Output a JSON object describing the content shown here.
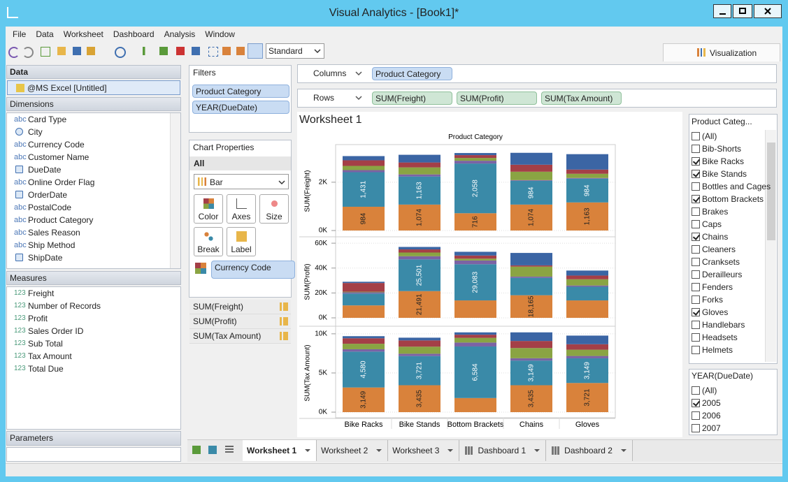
{
  "window": {
    "title": "Visual Analytics - [Book1]*"
  },
  "menu": [
    "File",
    "Data",
    "Worksheet",
    "Dashboard",
    "Analysis",
    "Window"
  ],
  "toolbar": {
    "view": "Standard"
  },
  "visualization_tab": "Visualization",
  "data_panel": {
    "title": "Data",
    "source": "@MS Excel [Untitled]",
    "dimensions_title": "Dimensions",
    "dimensions": [
      {
        "type": "abc",
        "name": "Card Type"
      },
      {
        "name": "City"
      },
      {
        "type": "abc",
        "name": "Currency Code"
      },
      {
        "type": "abc",
        "name": "Customer Name"
      },
      {
        "name": "DueDate"
      },
      {
        "type": "abc",
        "name": "Online Order Flag"
      },
      {
        "name": "OrderDate"
      },
      {
        "type": "abc",
        "name": "PostalCode"
      },
      {
        "type": "abc",
        "name": "Product Category"
      },
      {
        "type": "abc",
        "name": "Sales Reason"
      },
      {
        "type": "abc",
        "name": "Ship Method"
      },
      {
        "name": "ShipDate"
      }
    ],
    "measures_title": "Measures",
    "measures": [
      {
        "type": "123",
        "name": "Freight"
      },
      {
        "type": "123",
        "name": "Number of Records"
      },
      {
        "type": "123",
        "name": "Profit"
      },
      {
        "type": "123",
        "name": "Sales Order ID"
      },
      {
        "type": "123",
        "name": "Sub Total"
      },
      {
        "type": "123",
        "name": "Tax Amount"
      },
      {
        "type": "123",
        "name": "Total Due"
      }
    ],
    "parameters_title": "Parameters"
  },
  "filters": {
    "title": "Filters",
    "items": [
      "Product Category",
      "YEAR(DueDate)"
    ]
  },
  "chart_properties": {
    "title": "Chart Properties",
    "section": "All",
    "mark_type": "Bar",
    "buttons": [
      "Color",
      "Axes",
      "Size",
      "Break",
      "Label"
    ],
    "color_field": "Currency Code",
    "measures": [
      "SUM(Freight)",
      "SUM(Profit)",
      "SUM(Tax Amount)"
    ]
  },
  "shelves": {
    "columns": {
      "label": "Columns",
      "pills": [
        "Product Category"
      ]
    },
    "rows": {
      "label": "Rows",
      "pills": [
        "SUM(Freight)",
        "SUM(Profit)",
        "SUM(Tax Amount)"
      ]
    }
  },
  "worksheet_title": "Worksheet 1",
  "chart_data": {
    "type": "bar",
    "stacked": true,
    "title": "Product Category",
    "categories": [
      "Bike Racks",
      "Bike Stands",
      "Bottom Brackets",
      "Chains",
      "Gloves"
    ],
    "panels": [
      {
        "ylabel": "SUM(Freight)",
        "ylim": [
          0,
          3500
        ],
        "yticks": [
          {
            "value": 0,
            "label": "0K"
          },
          {
            "value": 2000,
            "label": "2K"
          }
        ],
        "series": [
          {
            "color": "#d9823b",
            "values": [
              984,
              1074,
              716,
              1074,
              1163
            ],
            "value_labels": [
              "984",
              "1,074",
              "716",
              "1,074",
              "1,163"
            ]
          },
          {
            "color": "#3a8aa8",
            "values": [
              1431,
              1163,
              2058,
              984,
              984
            ],
            "value_labels": [
              "1,431",
              "1,163",
              "2,058",
              "984",
              "984"
            ]
          },
          {
            "color": "#7b63a4",
            "values": [
              87,
              87,
              116,
              29,
              29
            ]
          },
          {
            "color": "#8aa443",
            "values": [
              174,
              290,
              116,
              348,
              174
            ]
          },
          {
            "color": "#a43f47",
            "values": [
              232,
              203,
              116,
              290,
              174
            ]
          },
          {
            "color": "#3b65a4",
            "values": [
              174,
              319,
              87,
              493,
              638
            ]
          }
        ]
      },
      {
        "ylabel": "SUM(Profit)",
        "ylim": [
          0,
          64000
        ],
        "yticks": [
          {
            "value": 0,
            "label": "0K"
          },
          {
            "value": 20000,
            "label": "20K"
          },
          {
            "value": 40000,
            "label": "40K"
          },
          {
            "value": 60000,
            "label": "60K"
          }
        ],
        "series": [
          {
            "color": "#d9823b",
            "values": [
              10000,
              21491,
              14000,
              18165,
              14000
            ],
            "value_labels": [
              null,
              "21,491",
              null,
              "18,165",
              null
            ]
          },
          {
            "color": "#3a8aa8",
            "values": [
              9500,
              25501,
              29083,
              14000,
              11000
            ],
            "value_labels": [
              null,
              "25,501",
              "29,083",
              null,
              null
            ]
          },
          {
            "color": "#7b63a4",
            "values": [
              1000,
              2500,
              3000,
              1000,
              1000
            ]
          },
          {
            "color": "#8aa443",
            "values": [
              500,
              3000,
              1500,
              8000,
              5000
            ]
          },
          {
            "color": "#a43f47",
            "values": [
              7000,
              2500,
              2500,
              1000,
              3000
            ]
          },
          {
            "color": "#3b65a4",
            "values": [
              1000,
              2000,
              3000,
              10000,
              4000
            ]
          }
        ]
      },
      {
        "ylabel": "SUM(Tax Amount)",
        "ylim": [
          0,
          10700
        ],
        "yticks": [
          {
            "value": 0,
            "label": "0K"
          },
          {
            "value": 5000,
            "label": "5K"
          },
          {
            "value": 10000,
            "label": "10K"
          }
        ],
        "series": [
          {
            "color": "#d9823b",
            "values": [
              3149,
              3435,
              1800,
              3435,
              3721
            ],
            "value_labels": [
              "3,149",
              "3,435",
              null,
              "3,435",
              "3,721"
            ]
          },
          {
            "color": "#3a8aa8",
            "values": [
              4580,
              3721,
              6584,
              3149,
              3149
            ],
            "value_labels": [
              "4,580",
              "3,721",
              "6,584",
              "3,149",
              "3,149"
            ]
          },
          {
            "color": "#7b63a4",
            "values": [
              300,
              300,
              500,
              300,
              300
            ]
          },
          {
            "color": "#8aa443",
            "values": [
              700,
              900,
              600,
              1300,
              800
            ]
          },
          {
            "color": "#a43f47",
            "values": [
              700,
              800,
              400,
              900,
              700
            ]
          },
          {
            "color": "#3b65a4",
            "values": [
              270,
              350,
              300,
              1100,
              1100
            ]
          }
        ]
      }
    ]
  },
  "quick_filters": [
    {
      "title": "Product Categ...",
      "items": [
        {
          "label": "(All)",
          "checked": false
        },
        {
          "label": "Bib-Shorts",
          "checked": false
        },
        {
          "label": "Bike Racks",
          "checked": true
        },
        {
          "label": "Bike Stands",
          "checked": true
        },
        {
          "label": "Bottles and Cages",
          "checked": false
        },
        {
          "label": "Bottom Brackets",
          "checked": true
        },
        {
          "label": "Brakes",
          "checked": false
        },
        {
          "label": "Caps",
          "checked": false
        },
        {
          "label": "Chains",
          "checked": true
        },
        {
          "label": "Cleaners",
          "checked": false
        },
        {
          "label": "Cranksets",
          "checked": false
        },
        {
          "label": "Derailleurs",
          "checked": false
        },
        {
          "label": "Fenders",
          "checked": false
        },
        {
          "label": "Forks",
          "checked": false
        },
        {
          "label": "Gloves",
          "checked": true
        },
        {
          "label": "Handlebars",
          "checked": false
        },
        {
          "label": "Headsets",
          "checked": false
        },
        {
          "label": "Helmets",
          "checked": false
        }
      ]
    },
    {
      "title": "YEAR(DueDate)",
      "items": [
        {
          "label": "(All)",
          "checked": false
        },
        {
          "label": "2005",
          "checked": true
        },
        {
          "label": "2006",
          "checked": false
        },
        {
          "label": "2007",
          "checked": false
        }
      ]
    }
  ],
  "tabs": [
    "Worksheet 1",
    "Worksheet 2",
    "Worksheet 3",
    "Dashboard 1",
    "Dashboard 2"
  ]
}
